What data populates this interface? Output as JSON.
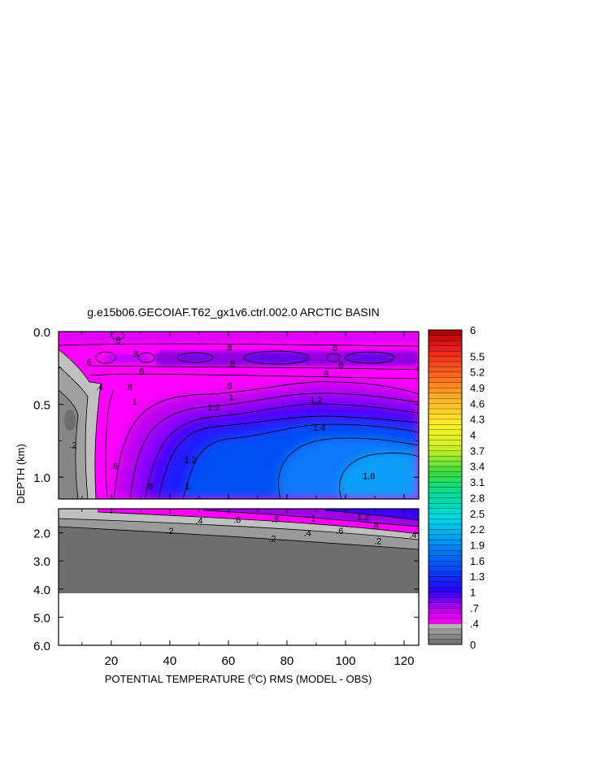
{
  "chart_data": {
    "type": "heatmap",
    "title": "g.e15b06.GECOIAF.T62_gx1v6.ctrl.002.0 ARCTIC BASIN",
    "xlabel_parts": [
      "POTENTIAL TEMPERATURE (",
      "o",
      "C) RMS (MODEL - OBS)"
    ],
    "ylabel": "DEPTH (km)",
    "xlim": [
      2,
      125
    ],
    "x_ticks": [
      20,
      40,
      60,
      80,
      100,
      120
    ],
    "x_tick_labels": [
      "20",
      "40",
      "60",
      "80",
      "100",
      "120"
    ],
    "upper_panel": {
      "depth_range_km": [
        0.0,
        1.15
      ],
      "y_ticks": [
        0.0,
        0.5,
        1.0
      ],
      "y_tick_labels": [
        "0.0",
        "0.5",
        "1.0"
      ]
    },
    "lower_panel": {
      "depth_range_km": [
        1.15,
        6.0
      ],
      "y_ticks": [
        2.0,
        3.0,
        4.0,
        5.0,
        6.0
      ],
      "y_tick_labels": [
        "2.0",
        "3.0",
        "4.0",
        "5.0",
        "6.0"
      ],
      "ocean_floor_km": 4.15
    },
    "colorbar": {
      "min": 0,
      "max": 6,
      "label_values": [
        6,
        5.5,
        5.2,
        4.9,
        4.6,
        4.3,
        4,
        3.7,
        3.4,
        3.1,
        2.8,
        2.5,
        2.2,
        1.9,
        1.6,
        1.3,
        1,
        0.7,
        0.4,
        0
      ],
      "labels": [
        "6",
        "5.5",
        "5.2",
        "4.9",
        "4.6",
        "4.3",
        "4",
        "3.7",
        "3.4",
        "3.1",
        "2.8",
        "2.5",
        "2.2",
        "1.9",
        "1.6",
        "1.3",
        "1",
        ".7",
        ".4",
        "0"
      ]
    },
    "contour_labels": [
      {
        "text": ".8",
        "x": 22,
        "depth": 0.06
      },
      {
        "text": ".8",
        "x": 28,
        "depth": 0.15
      },
      {
        "text": ".8",
        "x": 60,
        "depth": 0.11
      },
      {
        "text": ".8",
        "x": 96,
        "depth": 0.11
      },
      {
        "text": ".8",
        "x": 61,
        "depth": 0.22
      },
      {
        "text": ".6",
        "x": 12,
        "depth": 0.21
      },
      {
        "text": ".6",
        "x": 30,
        "depth": 0.27
      },
      {
        "text": ".8",
        "x": 93,
        "depth": 0.29
      },
      {
        "text": ".8",
        "x": 98,
        "depth": 0.23
      },
      {
        "text": ".4",
        "x": 16,
        "depth": 0.38
      },
      {
        "text": ".8",
        "x": 26,
        "depth": 0.38
      },
      {
        "text": ".8",
        "x": 60,
        "depth": 0.37
      },
      {
        "text": "1",
        "x": 28,
        "depth": 0.48
      },
      {
        "text": "1",
        "x": 61,
        "depth": 0.45
      },
      {
        "text": "1.2",
        "x": 90,
        "depth": 0.47
      },
      {
        "text": "1.2",
        "x": 55,
        "depth": 0.52
      },
      {
        "text": "1.4",
        "x": 91,
        "depth": 0.66
      },
      {
        "text": ".2",
        "x": 7,
        "depth": 0.78
      },
      {
        "text": "1.2",
        "x": 47,
        "depth": 0.88
      },
      {
        "text": ".6",
        "x": 21,
        "depth": 0.92
      },
      {
        "text": ".8",
        "x": 33,
        "depth": 1.06
      },
      {
        "text": "1",
        "x": 46,
        "depth": 1.06
      },
      {
        "text": "1.6",
        "x": 108,
        "depth": 0.99
      },
      {
        "text": ".4",
        "x": 50,
        "depth": 1.57
      },
      {
        "text": ".6",
        "x": 63,
        "depth": 1.53
      },
      {
        "text": ".8",
        "x": 76,
        "depth": 1.5
      },
      {
        "text": "1",
        "x": 89,
        "depth": 1.48
      },
      {
        "text": "1.2",
        "x": 106,
        "depth": 1.43
      },
      {
        "text": ".2",
        "x": 40,
        "depth": 1.93
      },
      {
        "text": ".2",
        "x": 75,
        "depth": 2.2
      },
      {
        "text": ".4",
        "x": 87,
        "depth": 2.0
      },
      {
        "text": ".6",
        "x": 98,
        "depth": 1.93
      },
      {
        "text": ".8",
        "x": 110,
        "depth": 1.77
      },
      {
        "text": ".2",
        "x": 111,
        "depth": 2.28
      },
      {
        "text": ".4",
        "x": 123,
        "depth": 2.07
      }
    ]
  }
}
